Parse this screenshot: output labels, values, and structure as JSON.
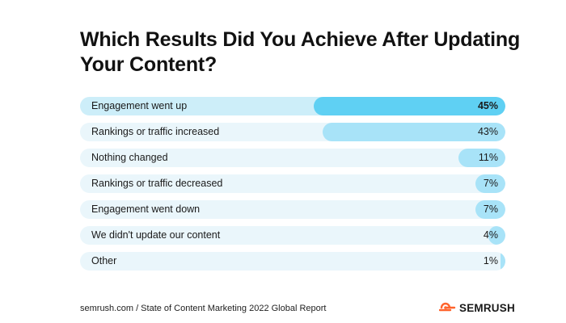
{
  "title": "Which Results Did You Achieve After Updating Your Content?",
  "source": "semrush.com / State of Content Marketing 2022 Global Report",
  "brand": {
    "name": "SEMRUSH",
    "icon": "semrush-fire-icon",
    "color": "#ff642d"
  },
  "colors": {
    "highlight": "#5fd0f3",
    "bar": "#a8e3f8",
    "track": "#eaf6fb"
  },
  "chart_data": {
    "type": "bar",
    "orientation": "horizontal",
    "categories": [
      "Engagement went up",
      "Rankings or traffic increased",
      "Nothing changed",
      "Rankings or traffic decreased",
      "Engagement went down",
      "We didn't update our content",
      "Other"
    ],
    "values": [
      45,
      43,
      11,
      7,
      7,
      4,
      1
    ],
    "value_labels": [
      "45%",
      "43%",
      "11%",
      "7%",
      "7%",
      "4%",
      "1%"
    ],
    "unit": "%",
    "highlight_index": 0,
    "xlim": [
      0,
      100
    ],
    "grid": false,
    "legend": "none"
  }
}
